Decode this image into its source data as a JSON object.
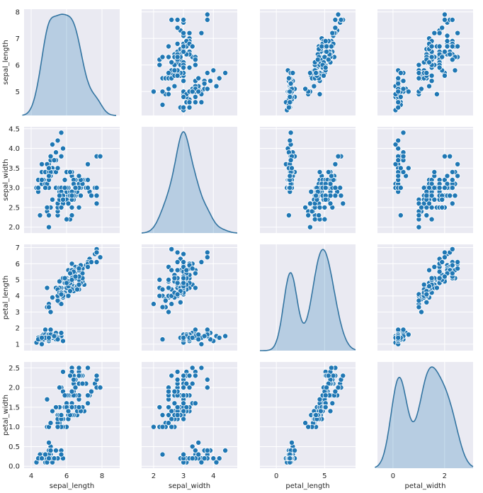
{
  "chart_data": {
    "type": "scatter",
    "title": "",
    "variables": [
      "sepal_length",
      "sepal_width",
      "petal_length",
      "petal_width"
    ],
    "axes": {
      "sepal_length": {
        "range": [
          3.6,
          9.0
        ],
        "ticks": [
          4,
          6,
          8
        ],
        "ytick_labels": [
          "5",
          "6",
          "7",
          "8"
        ],
        "yticks": [
          5,
          6,
          7,
          8
        ]
      },
      "sepal_width": {
        "range": [
          1.6,
          4.8
        ],
        "ticks": [
          2,
          3,
          4
        ],
        "ytick_labels": [
          "2.0",
          "2.5",
          "3.0",
          "3.5",
          "4.0",
          "4.5"
        ],
        "yticks": [
          2.0,
          2.5,
          3.0,
          3.5,
          4.0,
          4.5
        ]
      },
      "petal_length": {
        "range": [
          -1.7,
          8.2
        ],
        "ticks": [
          0,
          5
        ],
        "ytick_labels": [
          "1",
          "2",
          "3",
          "4",
          "5",
          "6",
          "7"
        ],
        "yticks": [
          1,
          2,
          3,
          4,
          5,
          6,
          7
        ]
      },
      "petal_width": {
        "range": [
          -0.6,
          3.1
        ],
        "ticks": [
          0,
          2
        ],
        "ytick_labels": [
          "0.0",
          "0.5",
          "1.0",
          "1.5",
          "2.0",
          "2.5"
        ],
        "yticks": [
          0.0,
          0.5,
          1.0,
          1.5,
          2.0,
          2.5
        ]
      }
    },
    "ylim": {
      "sepal_length": [
        4.1,
        8.1
      ],
      "sepal_width": [
        1.85,
        4.55
      ],
      "petal_length": [
        0.6,
        7.2
      ],
      "petal_width": [
        -0.05,
        2.65
      ]
    },
    "kde_xlim": {
      "sepal_length": [
        3.5,
        8.8
      ],
      "sepal_width": [
        1.6,
        4.8
      ],
      "petal_length": [
        -1.7,
        8.2
      ],
      "petal_width": [
        -0.7,
        3.1
      ]
    },
    "points": [
      [
        5.1,
        3.5,
        1.4,
        0.2
      ],
      [
        4.9,
        3.0,
        1.4,
        0.2
      ],
      [
        4.7,
        3.2,
        1.3,
        0.2
      ],
      [
        4.6,
        3.1,
        1.5,
        0.2
      ],
      [
        5.0,
        3.6,
        1.4,
        0.2
      ],
      [
        5.4,
        3.9,
        1.7,
        0.4
      ],
      [
        4.6,
        3.4,
        1.4,
        0.3
      ],
      [
        5.0,
        3.4,
        1.5,
        0.2
      ],
      [
        4.4,
        2.9,
        1.4,
        0.2
      ],
      [
        4.9,
        3.1,
        1.5,
        0.1
      ],
      [
        5.4,
        3.7,
        1.5,
        0.2
      ],
      [
        4.8,
        3.4,
        1.6,
        0.2
      ],
      [
        4.8,
        3.0,
        1.4,
        0.1
      ],
      [
        4.3,
        3.0,
        1.1,
        0.1
      ],
      [
        5.8,
        4.0,
        1.2,
        0.2
      ],
      [
        5.7,
        4.4,
        1.5,
        0.4
      ],
      [
        5.4,
        3.9,
        1.3,
        0.4
      ],
      [
        5.1,
        3.5,
        1.4,
        0.3
      ],
      [
        5.7,
        3.8,
        1.7,
        0.3
      ],
      [
        5.1,
        3.8,
        1.5,
        0.3
      ],
      [
        5.4,
        3.4,
        1.7,
        0.2
      ],
      [
        5.1,
        3.7,
        1.5,
        0.4
      ],
      [
        4.6,
        3.6,
        1.0,
        0.2
      ],
      [
        5.1,
        3.3,
        1.7,
        0.5
      ],
      [
        4.8,
        3.4,
        1.9,
        0.2
      ],
      [
        5.0,
        3.0,
        1.6,
        0.2
      ],
      [
        5.0,
        3.4,
        1.6,
        0.4
      ],
      [
        5.2,
        3.5,
        1.5,
        0.2
      ],
      [
        5.2,
        3.4,
        1.4,
        0.2
      ],
      [
        4.7,
        3.2,
        1.6,
        0.2
      ],
      [
        4.8,
        3.1,
        1.6,
        0.2
      ],
      [
        5.4,
        3.4,
        1.5,
        0.4
      ],
      [
        5.2,
        4.1,
        1.5,
        0.1
      ],
      [
        5.5,
        4.2,
        1.4,
        0.2
      ],
      [
        4.9,
        3.1,
        1.5,
        0.2
      ],
      [
        5.0,
        3.2,
        1.2,
        0.2
      ],
      [
        5.5,
        3.5,
        1.3,
        0.2
      ],
      [
        4.9,
        3.6,
        1.4,
        0.1
      ],
      [
        4.4,
        3.0,
        1.3,
        0.2
      ],
      [
        5.1,
        3.4,
        1.5,
        0.2
      ],
      [
        5.0,
        3.5,
        1.3,
        0.3
      ],
      [
        4.5,
        2.3,
        1.3,
        0.3
      ],
      [
        4.4,
        3.2,
        1.3,
        0.2
      ],
      [
        5.0,
        3.5,
        1.6,
        0.6
      ],
      [
        5.1,
        3.8,
        1.9,
        0.4
      ],
      [
        4.8,
        3.0,
        1.4,
        0.3
      ],
      [
        5.1,
        3.8,
        1.6,
        0.2
      ],
      [
        4.6,
        3.2,
        1.4,
        0.2
      ],
      [
        5.3,
        3.7,
        1.5,
        0.2
      ],
      [
        5.0,
        3.3,
        1.4,
        0.2
      ],
      [
        7.0,
        3.2,
        4.7,
        1.4
      ],
      [
        6.4,
        3.2,
        4.5,
        1.5
      ],
      [
        6.9,
        3.1,
        4.9,
        1.5
      ],
      [
        5.5,
        2.3,
        4.0,
        1.3
      ],
      [
        6.5,
        2.8,
        4.6,
        1.5
      ],
      [
        5.7,
        2.8,
        4.5,
        1.3
      ],
      [
        6.3,
        3.3,
        4.7,
        1.6
      ],
      [
        4.9,
        2.4,
        3.3,
        1.0
      ],
      [
        6.6,
        2.9,
        4.6,
        1.3
      ],
      [
        5.2,
        2.7,
        3.9,
        1.4
      ],
      [
        5.0,
        2.0,
        3.5,
        1.0
      ],
      [
        5.9,
        3.0,
        4.2,
        1.5
      ],
      [
        6.0,
        2.2,
        4.0,
        1.0
      ],
      [
        6.1,
        2.9,
        4.7,
        1.4
      ],
      [
        5.6,
        2.9,
        3.6,
        1.3
      ],
      [
        6.7,
        3.1,
        4.4,
        1.4
      ],
      [
        5.6,
        3.0,
        4.5,
        1.5
      ],
      [
        5.8,
        2.7,
        4.1,
        1.0
      ],
      [
        6.2,
        2.2,
        4.5,
        1.5
      ],
      [
        5.6,
        2.5,
        3.9,
        1.1
      ],
      [
        5.9,
        3.2,
        4.8,
        1.8
      ],
      [
        6.1,
        2.8,
        4.0,
        1.3
      ],
      [
        6.3,
        2.5,
        4.9,
        1.5
      ],
      [
        6.1,
        2.8,
        4.7,
        1.2
      ],
      [
        6.4,
        2.9,
        4.3,
        1.3
      ],
      [
        6.6,
        3.0,
        4.4,
        1.4
      ],
      [
        6.8,
        2.8,
        4.8,
        1.4
      ],
      [
        6.7,
        3.0,
        5.0,
        1.7
      ],
      [
        6.0,
        2.9,
        4.5,
        1.5
      ],
      [
        5.7,
        2.6,
        3.5,
        1.0
      ],
      [
        5.5,
        2.4,
        3.8,
        1.1
      ],
      [
        5.5,
        2.4,
        3.7,
        1.0
      ],
      [
        5.8,
        2.7,
        3.9,
        1.2
      ],
      [
        6.0,
        2.7,
        5.1,
        1.6
      ],
      [
        5.4,
        3.0,
        4.5,
        1.5
      ],
      [
        6.0,
        3.4,
        4.5,
        1.6
      ],
      [
        6.7,
        3.1,
        4.7,
        1.5
      ],
      [
        6.3,
        2.3,
        4.4,
        1.3
      ],
      [
        5.6,
        3.0,
        4.1,
        1.3
      ],
      [
        5.5,
        2.5,
        4.0,
        1.3
      ],
      [
        5.5,
        2.6,
        4.4,
        1.2
      ],
      [
        6.1,
        3.0,
        4.6,
        1.4
      ],
      [
        5.8,
        2.6,
        4.0,
        1.2
      ],
      [
        5.0,
        2.3,
        3.3,
        1.0
      ],
      [
        5.6,
        2.7,
        4.2,
        1.3
      ],
      [
        5.7,
        3.0,
        4.2,
        1.2
      ],
      [
        5.7,
        2.9,
        4.2,
        1.3
      ],
      [
        6.2,
        2.9,
        4.3,
        1.3
      ],
      [
        5.1,
        2.5,
        3.0,
        1.1
      ],
      [
        5.7,
        2.8,
        4.1,
        1.3
      ],
      [
        6.3,
        3.3,
        6.0,
        2.5
      ],
      [
        5.8,
        2.7,
        5.1,
        1.9
      ],
      [
        7.1,
        3.0,
        5.9,
        2.1
      ],
      [
        6.3,
        2.9,
        5.6,
        1.8
      ],
      [
        6.5,
        3.0,
        5.8,
        2.2
      ],
      [
        7.6,
        3.0,
        6.6,
        2.1
      ],
      [
        4.9,
        2.5,
        4.5,
        1.7
      ],
      [
        7.3,
        2.9,
        6.3,
        1.8
      ],
      [
        6.7,
        2.5,
        5.8,
        1.8
      ],
      [
        7.2,
        3.6,
        6.1,
        2.5
      ],
      [
        6.5,
        3.2,
        5.1,
        2.0
      ],
      [
        6.4,
        2.7,
        5.3,
        1.9
      ],
      [
        6.8,
        3.0,
        5.5,
        2.1
      ],
      [
        5.7,
        2.5,
        5.0,
        2.0
      ],
      [
        5.8,
        2.8,
        5.1,
        2.4
      ],
      [
        6.4,
        3.2,
        5.3,
        2.3
      ],
      [
        6.5,
        3.0,
        5.5,
        1.8
      ],
      [
        7.7,
        3.8,
        6.7,
        2.2
      ],
      [
        7.7,
        2.6,
        6.9,
        2.3
      ],
      [
        6.0,
        2.2,
        5.0,
        1.5
      ],
      [
        6.9,
        3.2,
        5.7,
        2.3
      ],
      [
        5.6,
        2.8,
        4.9,
        2.0
      ],
      [
        7.7,
        2.8,
        6.7,
        2.0
      ],
      [
        6.3,
        2.7,
        4.9,
        1.8
      ],
      [
        6.7,
        3.3,
        5.7,
        2.1
      ],
      [
        7.2,
        3.2,
        6.0,
        1.8
      ],
      [
        6.2,
        2.8,
        4.8,
        1.8
      ],
      [
        6.1,
        3.0,
        4.9,
        1.8
      ],
      [
        6.4,
        2.8,
        5.6,
        2.1
      ],
      [
        7.2,
        3.0,
        5.8,
        1.6
      ],
      [
        7.4,
        2.8,
        6.1,
        1.9
      ],
      [
        7.9,
        3.8,
        6.4,
        2.0
      ],
      [
        6.4,
        2.8,
        5.6,
        2.2
      ],
      [
        6.3,
        2.8,
        5.1,
        1.5
      ],
      [
        6.1,
        2.6,
        5.6,
        1.4
      ],
      [
        7.7,
        3.0,
        6.1,
        2.3
      ],
      [
        6.3,
        3.4,
        5.6,
        2.4
      ],
      [
        6.4,
        3.1,
        5.5,
        1.8
      ],
      [
        6.0,
        3.0,
        4.8,
        1.8
      ],
      [
        6.9,
        3.1,
        5.4,
        2.1
      ],
      [
        6.7,
        3.1,
        5.6,
        2.4
      ],
      [
        6.9,
        3.1,
        5.1,
        2.3
      ],
      [
        5.8,
        2.7,
        5.1,
        1.9
      ],
      [
        6.8,
        3.2,
        5.9,
        2.3
      ],
      [
        6.7,
        3.3,
        5.7,
        2.5
      ],
      [
        6.7,
        3.0,
        5.2,
        2.3
      ],
      [
        6.3,
        2.5,
        5.0,
        1.9
      ],
      [
        6.5,
        3.0,
        5.2,
        2.0
      ],
      [
        6.2,
        3.4,
        5.4,
        2.3
      ],
      [
        5.9,
        3.0,
        5.1,
        1.8
      ]
    ]
  }
}
